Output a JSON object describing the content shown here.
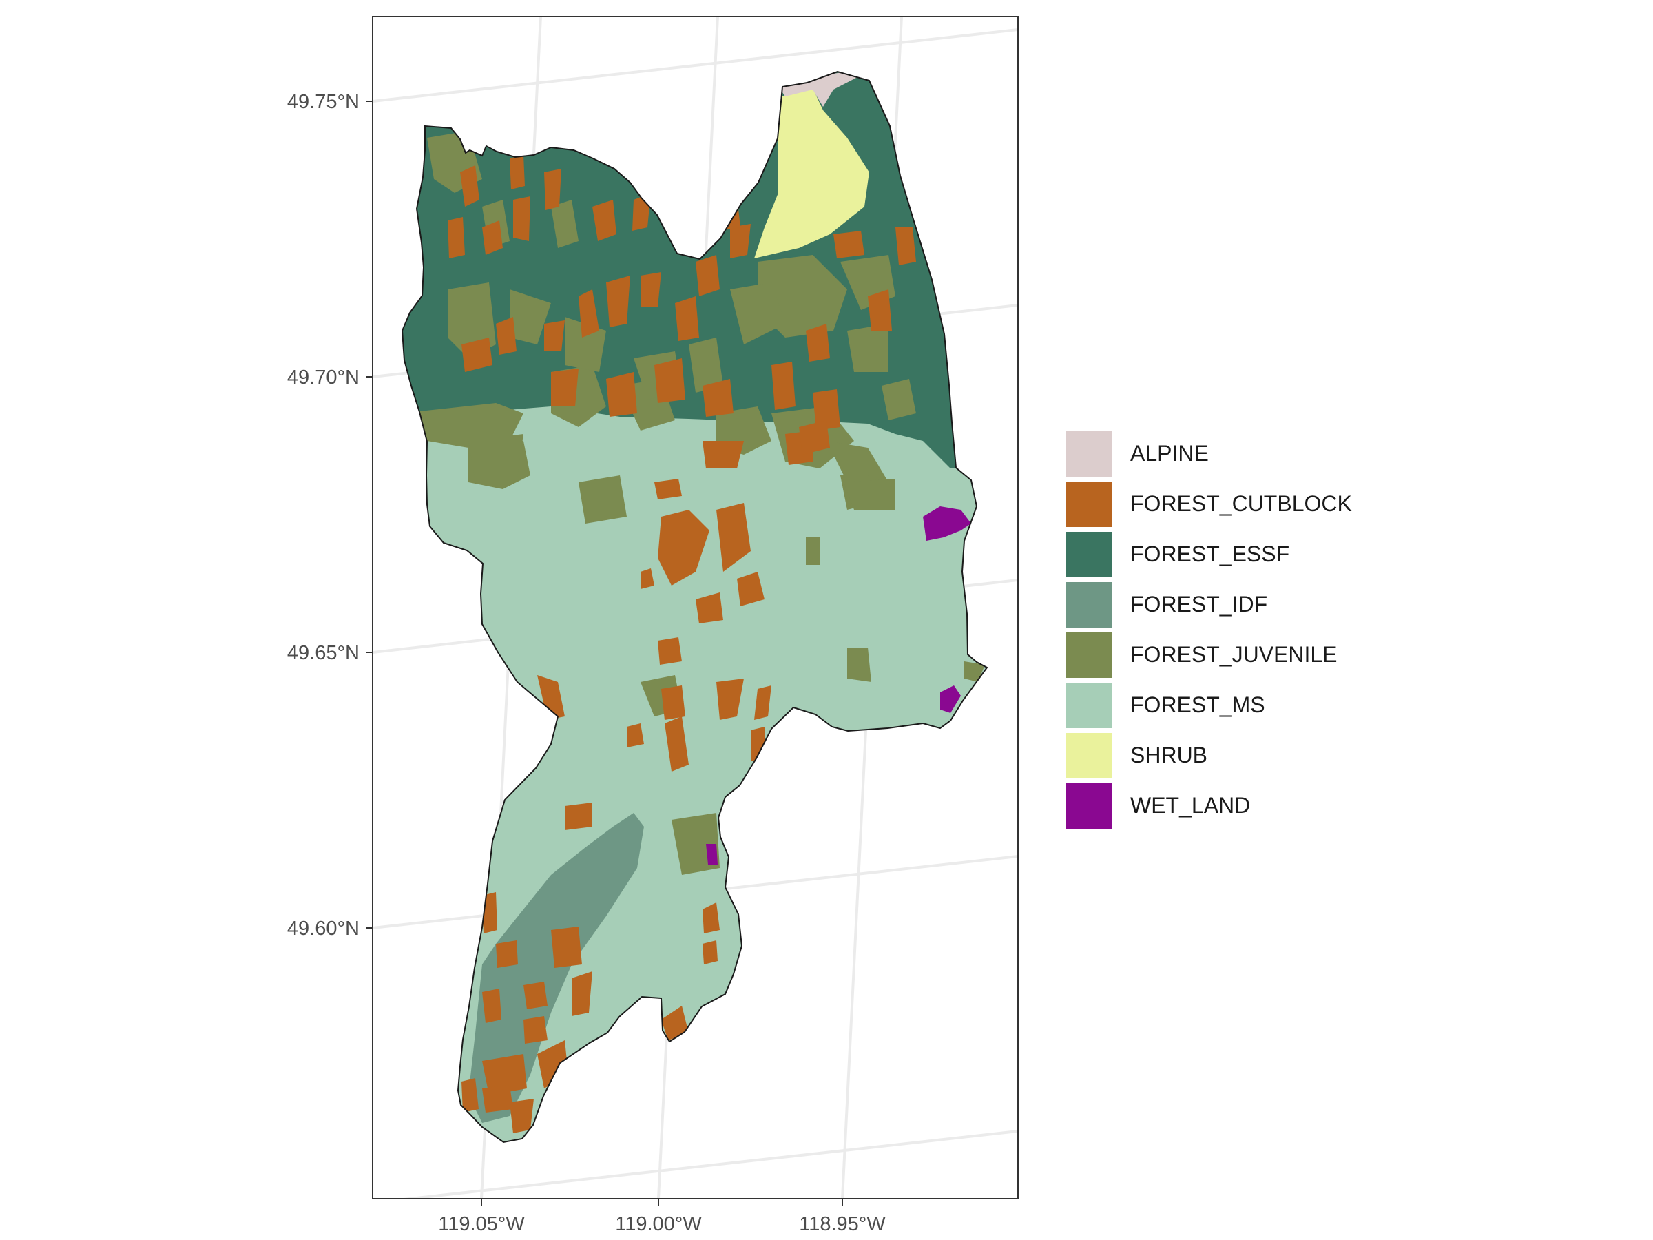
{
  "map": {
    "x_ticks": [
      "119.05°W",
      "119.00°W",
      "118.95°W"
    ],
    "y_ticks": [
      "49.75°N",
      "49.70°N",
      "49.65°N",
      "49.60°N"
    ]
  },
  "legend": {
    "items": [
      {
        "label": "ALPINE",
        "color": "#dccdcd"
      },
      {
        "label": "FOREST_CUTBLOCK",
        "color": "#b8641f"
      },
      {
        "label": "FOREST_ESSF",
        "color": "#3a7561"
      },
      {
        "label": "FOREST_IDF",
        "color": "#6e9785"
      },
      {
        "label": "FOREST_JUVENILE",
        "color": "#7b8b50"
      },
      {
        "label": "FOREST_MS",
        "color": "#a6ceb7"
      },
      {
        "label": "SHRUB",
        "color": "#eaf29c"
      },
      {
        "label": "WET_LAND",
        "color": "#8a0891"
      }
    ]
  }
}
